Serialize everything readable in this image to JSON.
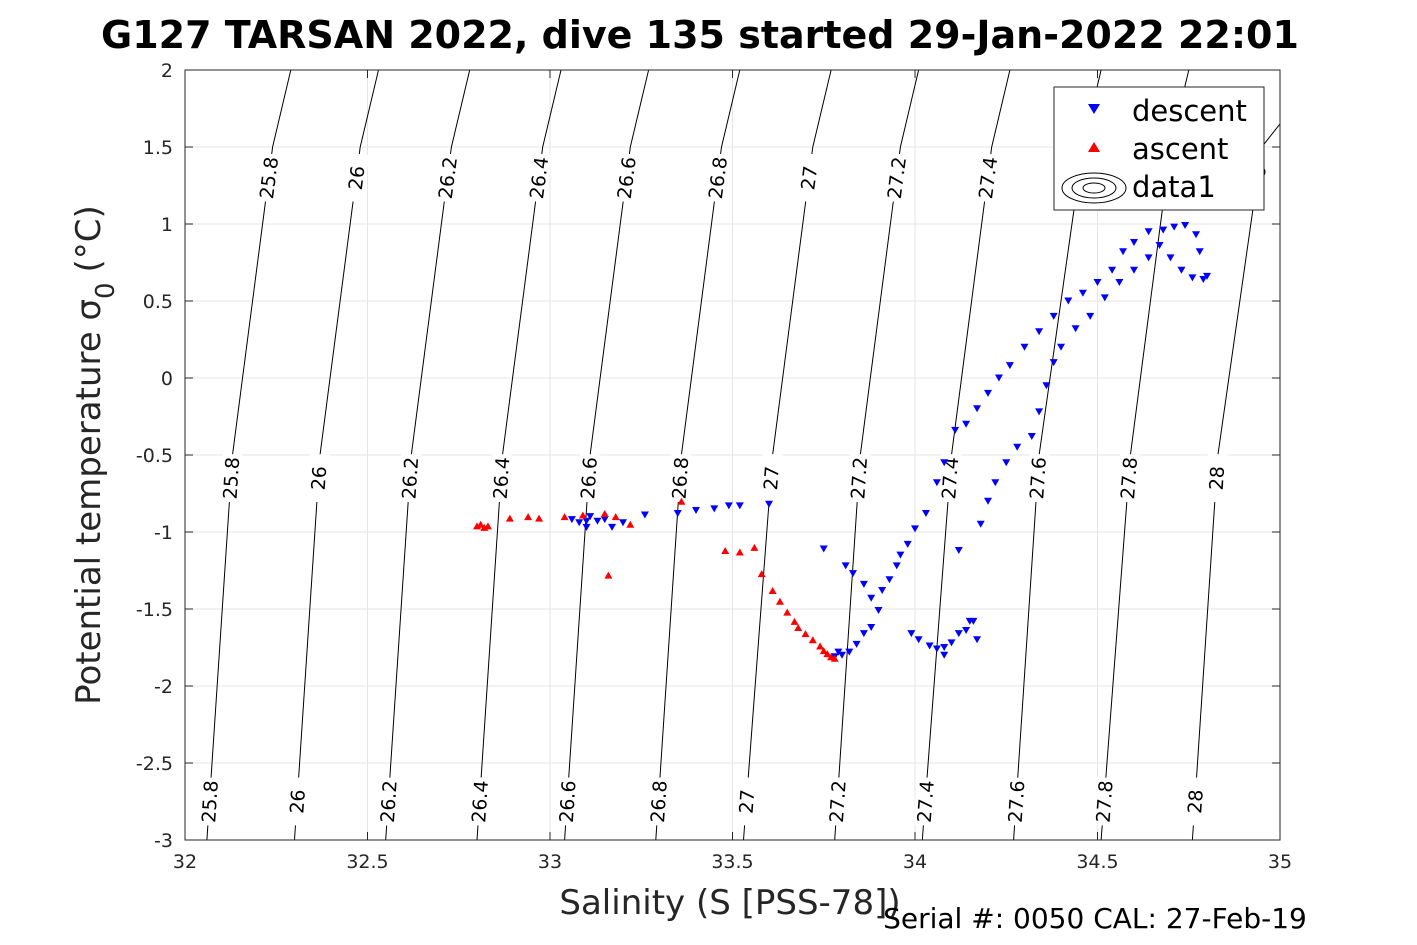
{
  "chart_data": {
    "type": "scatter",
    "title": "G127 TARSAN 2022, dive 135 started 29-Jan-2022 22:01",
    "xlabel": "Salinity (S [PSS-78])",
    "ylabel": "Potential temperature σ",
    "ylabel_sub": "0",
    "ylabel_unit": "(°C)",
    "footer": "Serial #: 0050  CAL: 27-Feb-19",
    "xlim": [
      32,
      35
    ],
    "ylim": [
      -3,
      2
    ],
    "xticks": [
      "32",
      "32.5",
      "33",
      "33.5",
      "34",
      "34.5",
      "35"
    ],
    "yticks": [
      "-3",
      "-2.5",
      "-2",
      "-1.5",
      "-1",
      "-0.5",
      "0",
      "0.5",
      "1",
      "1.5",
      "2"
    ],
    "xtick_values": [
      32,
      32.5,
      33,
      33.5,
      34,
      34.5,
      35
    ],
    "ytick_values": [
      -3,
      -2.5,
      -2,
      -1.5,
      -1,
      -0.5,
      0,
      0.5,
      1,
      1.5,
      2
    ],
    "grid": true,
    "legend_position": "top-right",
    "legend": [
      {
        "label": "descent",
        "marker": "triangle-down",
        "color": "#0000ff"
      },
      {
        "label": "ascent",
        "marker": "triangle-up",
        "color": "#ff0000"
      },
      {
        "label": "data1",
        "marker": "contour",
        "color": "#000000"
      }
    ],
    "contours": [
      {
        "label": "25.8",
        "points": [
          [
            32.06,
            -3
          ],
          [
            32.13,
            -0.5
          ],
          [
            32.24,
            1.5
          ],
          [
            32.29,
            2
          ]
        ]
      },
      {
        "label": "26",
        "points": [
          [
            32.3,
            -3
          ],
          [
            32.37,
            -0.5
          ],
          [
            32.48,
            1.5
          ],
          [
            32.53,
            2
          ]
        ]
      },
      {
        "label": "26.2",
        "points": [
          [
            32.55,
            -3
          ],
          [
            32.62,
            -0.5
          ],
          [
            32.73,
            1.5
          ],
          [
            32.78,
            2
          ]
        ]
      },
      {
        "label": "26.4",
        "points": [
          [
            32.8,
            -3
          ],
          [
            32.87,
            -0.5
          ],
          [
            32.98,
            1.5
          ],
          [
            33.03,
            2
          ]
        ]
      },
      {
        "label": "26.6",
        "points": [
          [
            33.04,
            -3
          ],
          [
            33.11,
            -0.5
          ],
          [
            33.22,
            1.5
          ],
          [
            33.27,
            2
          ]
        ]
      },
      {
        "label": "26.8",
        "points": [
          [
            33.29,
            -3
          ],
          [
            33.36,
            -0.5
          ],
          [
            33.47,
            1.5
          ],
          [
            33.52,
            2
          ]
        ]
      },
      {
        "label": "27",
        "points": [
          [
            33.53,
            -3
          ],
          [
            33.61,
            -0.5
          ],
          [
            33.72,
            1.5
          ],
          [
            33.77,
            2
          ]
        ]
      },
      {
        "label": "27.2",
        "points": [
          [
            33.78,
            -3
          ],
          [
            33.85,
            -0.5
          ],
          [
            33.96,
            1.5
          ],
          [
            34.01,
            2
          ]
        ]
      },
      {
        "label": "27.4",
        "points": [
          [
            34.02,
            -3
          ],
          [
            34.1,
            -0.5
          ],
          [
            34.21,
            1.5
          ],
          [
            34.26,
            2
          ]
        ]
      },
      {
        "label": "27.6",
        "points": [
          [
            34.27,
            -3
          ],
          [
            34.34,
            -0.5
          ],
          [
            34.46,
            1.5
          ],
          [
            34.51,
            2
          ]
        ]
      },
      {
        "label": "27.8",
        "points": [
          [
            34.51,
            -3
          ],
          [
            34.59,
            -0.5
          ],
          [
            34.7,
            1.5
          ],
          [
            34.75,
            2
          ]
        ]
      },
      {
        "label": "28",
        "points": [
          [
            34.76,
            -3
          ],
          [
            34.83,
            -0.5
          ],
          [
            34.95,
            1.5
          ],
          [
            35.0,
            1.65
          ]
        ]
      }
    ],
    "series": [
      {
        "name": "descent",
        "marker": "triangle-down",
        "color": "#0000ff",
        "points": [
          [
            33.06,
            -0.92
          ],
          [
            33.08,
            -0.94
          ],
          [
            33.1,
            -0.93
          ],
          [
            33.11,
            -0.9
          ],
          [
            33.13,
            -0.93
          ],
          [
            33.15,
            -0.92
          ],
          [
            33.17,
            -0.97
          ],
          [
            33.26,
            -0.89
          ],
          [
            33.35,
            -0.88
          ],
          [
            33.4,
            -0.86
          ],
          [
            33.45,
            -0.85
          ],
          [
            33.49,
            -0.83
          ],
          [
            33.52,
            -0.83
          ],
          [
            33.6,
            -0.82
          ],
          [
            33.75,
            -1.11
          ],
          [
            33.81,
            -1.22
          ],
          [
            33.83,
            -1.27
          ],
          [
            33.86,
            -1.34
          ],
          [
            33.88,
            -1.43
          ],
          [
            33.9,
            -1.51
          ],
          [
            33.88,
            -1.62
          ],
          [
            33.86,
            -1.66
          ],
          [
            33.84,
            -1.73
          ],
          [
            33.82,
            -1.78
          ],
          [
            33.8,
            -1.8
          ],
          [
            33.78,
            -1.81
          ],
          [
            33.79,
            -1.78
          ],
          [
            33.91,
            -1.38
          ],
          [
            33.93,
            -1.31
          ],
          [
            33.95,
            -1.22
          ],
          [
            33.96,
            -1.15
          ],
          [
            33.98,
            -1.08
          ],
          [
            34.0,
            -0.98
          ],
          [
            34.03,
            -0.88
          ],
          [
            34.06,
            -0.68
          ],
          [
            34.08,
            -0.55
          ],
          [
            34.11,
            -0.34
          ],
          [
            34.14,
            -0.3
          ],
          [
            34.17,
            -0.2
          ],
          [
            34.2,
            -0.1
          ],
          [
            34.23,
            0.0
          ],
          [
            34.26,
            0.08
          ],
          [
            34.3,
            0.2
          ],
          [
            34.34,
            0.3
          ],
          [
            34.38,
            0.4
          ],
          [
            34.42,
            0.5
          ],
          [
            34.46,
            0.55
          ],
          [
            34.5,
            0.62
          ],
          [
            34.54,
            0.7
          ],
          [
            34.57,
            0.82
          ],
          [
            34.6,
            0.88
          ],
          [
            34.64,
            0.95
          ],
          [
            34.68,
            0.96
          ],
          [
            34.71,
            0.98
          ],
          [
            34.74,
            0.99
          ],
          [
            34.77,
            0.93
          ],
          [
            34.78,
            0.82
          ],
          [
            34.8,
            0.66
          ],
          [
            34.79,
            0.64
          ],
          [
            34.76,
            0.65
          ],
          [
            34.73,
            0.7
          ],
          [
            34.7,
            0.78
          ],
          [
            34.67,
            0.86
          ],
          [
            34.64,
            0.78
          ],
          [
            34.6,
            0.7
          ],
          [
            34.56,
            0.62
          ],
          [
            34.52,
            0.52
          ],
          [
            34.48,
            0.4
          ],
          [
            34.44,
            0.32
          ],
          [
            34.4,
            0.2
          ],
          [
            34.38,
            0.1
          ],
          [
            34.36,
            -0.05
          ],
          [
            34.34,
            -0.22
          ],
          [
            34.32,
            -0.38
          ],
          [
            34.28,
            -0.45
          ],
          [
            34.25,
            -0.55
          ],
          [
            34.22,
            -0.68
          ],
          [
            34.2,
            -0.8
          ],
          [
            34.18,
            -0.95
          ],
          [
            34.15,
            -1.58
          ],
          [
            34.12,
            -1.66
          ],
          [
            34.1,
            -1.72
          ],
          [
            34.08,
            -1.75
          ],
          [
            34.06,
            -1.76
          ],
          [
            34.04,
            -1.74
          ],
          [
            34.01,
            -1.7
          ],
          [
            33.99,
            -1.66
          ],
          [
            34.08,
            -1.8
          ],
          [
            34.14,
            -1.64
          ],
          [
            34.17,
            -1.7
          ],
          [
            34.12,
            -1.12
          ],
          [
            34.16,
            -1.58
          ],
          [
            33.1,
            -0.97
          ],
          [
            33.2,
            -0.94
          ]
        ]
      },
      {
        "name": "ascent",
        "marker": "triangle-up",
        "color": "#ff0000",
        "points": [
          [
            32.8,
            -0.96
          ],
          [
            32.81,
            -0.95
          ],
          [
            32.82,
            -0.97
          ],
          [
            32.83,
            -0.96
          ],
          [
            32.89,
            -0.91
          ],
          [
            32.94,
            -0.9
          ],
          [
            32.97,
            -0.91
          ],
          [
            33.04,
            -0.9
          ],
          [
            33.09,
            -0.89
          ],
          [
            33.15,
            -0.88
          ],
          [
            33.18,
            -0.9
          ],
          [
            33.22,
            -0.95
          ],
          [
            33.16,
            -1.28
          ],
          [
            33.36,
            -0.8
          ],
          [
            33.48,
            -1.12
          ],
          [
            33.52,
            -1.13
          ],
          [
            33.56,
            -1.1
          ],
          [
            33.58,
            -1.27
          ],
          [
            33.61,
            -1.38
          ],
          [
            33.63,
            -1.45
          ],
          [
            33.65,
            -1.52
          ],
          [
            33.67,
            -1.58
          ],
          [
            33.68,
            -1.62
          ],
          [
            33.7,
            -1.66
          ],
          [
            33.72,
            -1.7
          ],
          [
            33.74,
            -1.74
          ],
          [
            33.75,
            -1.77
          ],
          [
            33.76,
            -1.79
          ],
          [
            33.77,
            -1.81
          ],
          [
            33.78,
            -1.82
          ]
        ]
      }
    ]
  }
}
